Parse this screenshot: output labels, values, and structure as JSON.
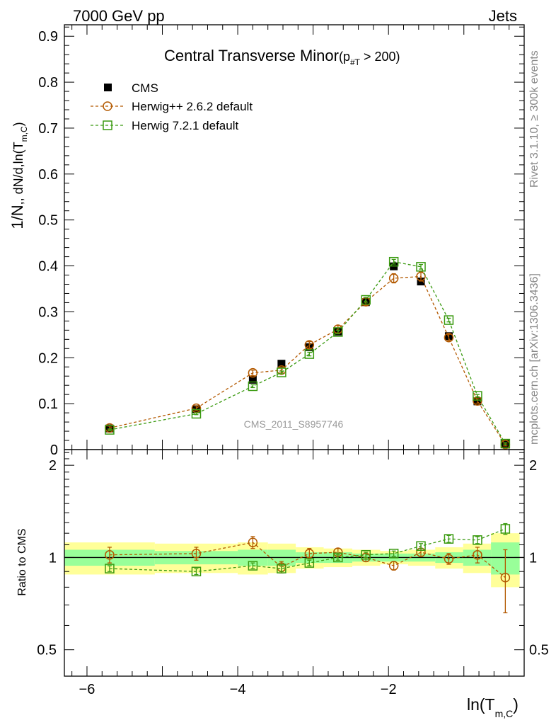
{
  "header": {
    "energy_label": "7000 GeV pp",
    "category_label": "Jets"
  },
  "side_text": {
    "rivet": "Rivet 3.1.10, ≥ 300k events",
    "mcplots": "mcplots.cern.ch [arXiv:1306.3436]"
  },
  "watermark": "CMS_2011_S8957746",
  "chart_data": [
    {
      "type": "scatter",
      "panel": "main",
      "title": "Central Transverse Minor",
      "title_suffix": "(p",
      "title_sub": "#T",
      "title_tail": " > 200)",
      "ylabel_main": "1/N",
      "ylabel_rest": ",, dN/d,ln(T",
      "ylabel_sub": "m,C",
      "ylabel_close": ")",
      "xlim": [
        -6.3,
        -0.2
      ],
      "ylim": [
        0,
        0.925
      ],
      "y_ticks": [
        0,
        0.1,
        0.2,
        0.3,
        0.4,
        0.5,
        0.6,
        0.7,
        0.8,
        0.9
      ],
      "y_tick_labels": [
        "0",
        "0.1",
        "0.2",
        "0.3",
        "0.4",
        "0.5",
        "0.6",
        "0.7",
        "0.8",
        "0.9"
      ],
      "legend_position": "top-left",
      "series": [
        {
          "name": "CMS",
          "color": "#000000",
          "marker": "filled-square",
          "x": [
            -5.7,
            -4.55,
            -3.8,
            -3.42,
            -3.05,
            -2.67,
            -2.3,
            -1.93,
            -1.57,
            -1.2,
            -0.82,
            -0.45
          ],
          "y": [
            0.046,
            0.088,
            0.152,
            0.187,
            0.223,
            0.257,
            0.321,
            0.399,
            0.366,
            0.247,
            0.105,
            0.013
          ]
        },
        {
          "name": "Herwig++ 2.6.2 default",
          "color": "#b35900",
          "marker": "open-circle",
          "x": [
            -5.7,
            -4.55,
            -3.8,
            -3.42,
            -3.05,
            -2.67,
            -2.3,
            -1.93,
            -1.57,
            -1.2,
            -0.82,
            -0.45
          ],
          "y": [
            0.047,
            0.09,
            0.167,
            0.173,
            0.228,
            0.262,
            0.322,
            0.373,
            0.377,
            0.244,
            0.106,
            0.011
          ],
          "err": [
            0.004,
            0.005,
            0.006,
            0.006,
            0.007,
            0.008,
            0.008,
            0.01,
            0.01,
            0.007,
            0.005,
            0.003
          ]
        },
        {
          "name": "Herwig 7.2.1 default",
          "color": "#3a9a10",
          "marker": "open-square",
          "x": [
            -5.7,
            -4.55,
            -3.8,
            -3.42,
            -3.05,
            -2.67,
            -2.3,
            -1.93,
            -1.57,
            -1.2,
            -0.82,
            -0.45
          ],
          "y": [
            0.043,
            0.078,
            0.138,
            0.168,
            0.208,
            0.256,
            0.326,
            0.409,
            0.398,
            0.282,
            0.117,
            0.013
          ],
          "err": [
            0.002,
            0.002,
            0.003,
            0.003,
            0.004,
            0.004,
            0.005,
            0.005,
            0.005,
            0.004,
            0.003,
            0.002
          ]
        }
      ]
    },
    {
      "type": "scatter",
      "panel": "ratio",
      "ylabel": "Ratio to CMS",
      "xlabel_main": "ln(T",
      "xlabel_sub": "m,C",
      "xlabel_close": ")",
      "xlim": [
        -6.3,
        -0.2
      ],
      "ylim": [
        0.41,
        2.25
      ],
      "log_y": true,
      "x_ticks": [
        -6,
        -4,
        -2
      ],
      "x_tick_labels": [
        "−6",
        "−4",
        "−2"
      ],
      "y_ticks": [
        0.5,
        1,
        2
      ],
      "y_tick_labels": [
        "0.5",
        "1",
        "2"
      ],
      "bins": [
        -6.3,
        -5.1,
        -4.0,
        -3.6,
        -3.23,
        -2.86,
        -2.48,
        -2.11,
        -1.74,
        -1.38,
        -1.01,
        -0.64,
        -0.26
      ],
      "band_inner": [
        0.06,
        0.05,
        0.06,
        0.06,
        0.04,
        0.04,
        0.03,
        0.03,
        0.03,
        0.04,
        0.06,
        0.12
      ],
      "band_outer": [
        0.12,
        0.11,
        0.12,
        0.11,
        0.08,
        0.07,
        0.06,
        0.05,
        0.06,
        0.08,
        0.11,
        0.2
      ],
      "series": [
        {
          "name": "Herwig++ 2.6.2 default",
          "color": "#b35900",
          "x": [
            -5.7,
            -4.55,
            -3.8,
            -3.42,
            -3.05,
            -2.67,
            -2.3,
            -1.93,
            -1.57,
            -1.2,
            -0.82,
            -0.45
          ],
          "y": [
            1.02,
            1.03,
            1.12,
            0.93,
            1.03,
            1.04,
            1.0,
            0.94,
            1.04,
            0.99,
            1.02,
            0.86
          ],
          "err": [
            0.06,
            0.05,
            0.05,
            0.04,
            0.04,
            0.03,
            0.03,
            0.03,
            0.03,
            0.04,
            0.06,
            0.2
          ]
        },
        {
          "name": "Herwig 7.2.1 default",
          "color": "#3a9a10",
          "x": [
            -5.7,
            -4.55,
            -3.8,
            -3.42,
            -3.05,
            -2.67,
            -2.3,
            -1.93,
            -1.57,
            -1.2,
            -0.82,
            -0.45
          ],
          "y": [
            0.92,
            0.9,
            0.94,
            0.92,
            0.96,
            1.0,
            1.02,
            1.03,
            1.09,
            1.15,
            1.14,
            1.24
          ],
          "err": [
            0.02,
            0.02,
            0.02,
            0.02,
            0.02,
            0.02,
            0.02,
            0.02,
            0.02,
            0.03,
            0.03,
            0.05
          ]
        }
      ]
    }
  ]
}
